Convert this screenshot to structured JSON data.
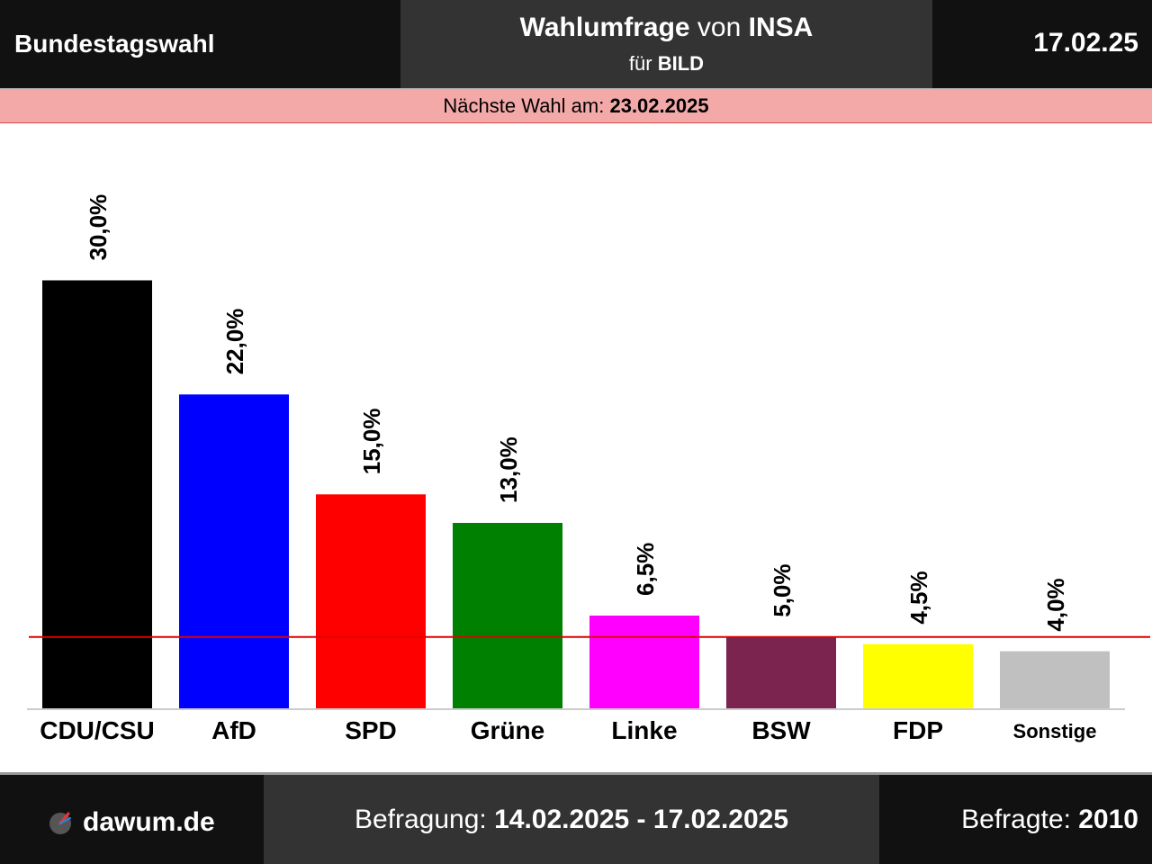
{
  "header": {
    "election": "Bundestagswahl",
    "title_main": "Wahlumfrage",
    "title_connector": "von",
    "institute": "INSA",
    "client_prefix": "für",
    "client": "BILD",
    "date": "17.02.25"
  },
  "next_election": {
    "label": "Nächste Wahl am:",
    "date": "23.02.2025"
  },
  "chart_data": {
    "type": "bar",
    "categories": [
      "CDU/CSU",
      "AfD",
      "SPD",
      "Grüne",
      "Linke",
      "BSW",
      "FDP",
      "Sonstige"
    ],
    "values": [
      30.0,
      22.0,
      15.0,
      13.0,
      6.5,
      5.0,
      4.5,
      4.0
    ],
    "value_labels": [
      "30,0%",
      "22,0%",
      "15,0%",
      "13,0%",
      "6,5%",
      "5,0%",
      "4,5%",
      "4,0%"
    ],
    "colors": [
      "#000000",
      "#0000ff",
      "#ff0000",
      "#008000",
      "#ff00ff",
      "#7b2450",
      "#ffff00",
      "#c0c0c0"
    ],
    "threshold": 5.0,
    "threshold_color": "#e00000",
    "ylim": [
      0,
      30
    ],
    "grid": false,
    "legend": "none",
    "title": "",
    "xlabel": "",
    "ylabel": ""
  },
  "footer": {
    "brand": "dawum.de",
    "survey_label": "Befragung:",
    "survey_period": "14.02.2025 - 17.02.2025",
    "respondents_label": "Befragte:",
    "respondents": "2010"
  }
}
